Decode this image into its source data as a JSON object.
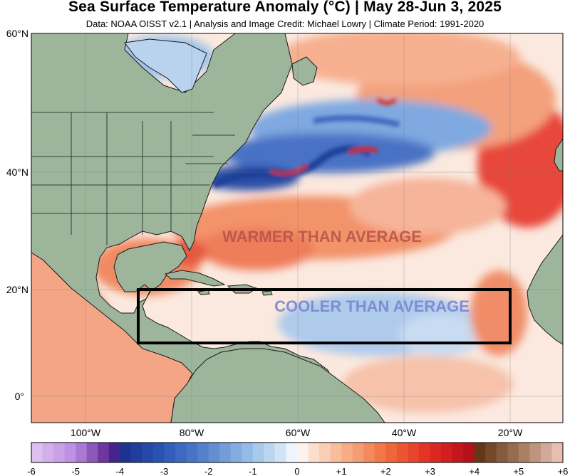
{
  "header": {
    "title": "Sea Surface Temperature Anomaly (°C) | May 28-Jun 3, 2025",
    "subtitle": "Data: NOAA OISST v2.1 | Analysis and Image Credit: Michael Lowry | Climate Period: 1991-2020"
  },
  "axes": {
    "lat_labels": [
      "60°N",
      "40°N",
      "20°N",
      "0°"
    ],
    "lon_labels": [
      "100°W",
      "80°W",
      "60°W",
      "40°W",
      "20°W"
    ]
  },
  "annotations": {
    "warmer": "WARMER THAN AVERAGE",
    "cooler": "COOLER THAN AVERAGE"
  },
  "highlight_box": {
    "lon_min": -90,
    "lon_max": -20,
    "lat_min": 10,
    "lat_max": 20
  },
  "colorbar": {
    "min": -6,
    "max": 6,
    "labels": [
      "-6",
      "-5",
      "-4",
      "-3",
      "-2",
      "-1",
      "0",
      "+1",
      "+2",
      "+3",
      "+4",
      "+5",
      "+6"
    ]
  },
  "colors": {
    "land": "#9db59b",
    "coast": "#1a1a1a",
    "neutral_ocean": "#fbeee8",
    "warm": "#f08a62",
    "hot": "#e0281e",
    "cool": "#9fc3ea",
    "cold": "#2b4ea8",
    "warm_annot": "#b5524a",
    "cool_annot": "#7a86cf",
    "box": "#000000"
  }
}
